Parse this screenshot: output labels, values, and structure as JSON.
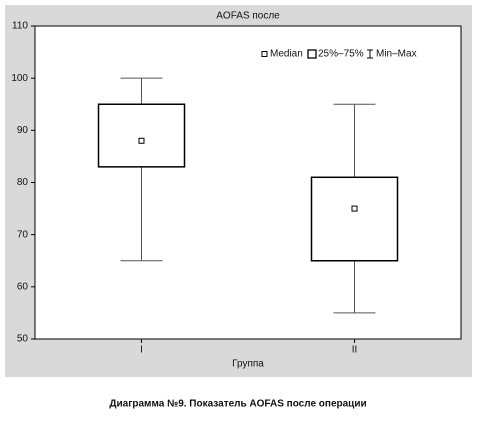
{
  "chart_data": {
    "type": "box",
    "title": "AOFAS после",
    "xlabel": "Группа",
    "categories": [
      "I",
      "II"
    ],
    "boxes": [
      {
        "min": 65,
        "q1": 83,
        "median": 88,
        "q3": 95,
        "max": 100
      },
      {
        "min": 55,
        "q1": 65,
        "median": 75,
        "q3": 81,
        "max": 95
      }
    ],
    "legend": [
      "Median",
      "25%–75%",
      "Min–Max"
    ],
    "ylim": [
      50,
      110
    ],
    "yticks": [
      50,
      60,
      70,
      80,
      90,
      100,
      110
    ]
  },
  "caption": "Диаграмма №9. Показатель AOFAS после операции"
}
